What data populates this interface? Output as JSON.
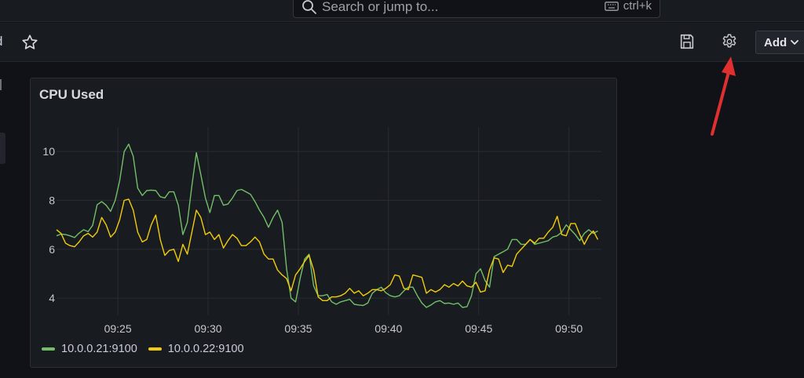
{
  "topbar": {
    "search_placeholder": "Search or jump to...",
    "search_shortcut": "ctrl+k"
  },
  "toolbar": {
    "crumb_tail": "d",
    "add_label": "Add"
  },
  "colors": {
    "series1": "#73bf69",
    "series2": "#f2cc0c",
    "annotation_arrow": "#e02f2f"
  },
  "panel": {
    "title": "CPU Used"
  },
  "chart_data": {
    "type": "line",
    "title": "CPU Used",
    "xlabel": "",
    "ylabel": "",
    "x_ticks": [
      "09:25",
      "09:30",
      "09:35",
      "09:40",
      "09:45",
      "09:50"
    ],
    "y_ticks": [
      4,
      6,
      8,
      10
    ],
    "x_range_minutes": [
      "09:21.6",
      "09:51.8"
    ],
    "ylim": [
      3.3,
      11.0
    ],
    "grid": true,
    "legend_position": "bottom-left",
    "x_start": "09:21.6",
    "x_step_minutes": 0.25,
    "series": [
      {
        "name": "10.0.0.21:9100",
        "color": "#73bf69",
        "values": [
          6.55,
          6.62,
          6.6,
          6.55,
          6.48,
          6.66,
          6.8,
          6.72,
          6.98,
          7.82,
          7.95,
          7.8,
          7.55,
          8.0,
          8.8,
          10.0,
          10.3,
          9.8,
          8.5,
          8.2,
          8.4,
          8.42,
          8.4,
          8.15,
          8.1,
          8.35,
          8.35,
          7.8,
          6.6,
          7.1,
          8.6,
          9.95,
          9.05,
          8.1,
          7.5,
          8.2,
          8.2,
          7.8,
          7.85,
          8.1,
          8.4,
          8.45,
          8.35,
          8.25,
          7.95,
          7.6,
          7.3,
          6.9,
          7.3,
          7.6,
          7.1,
          5.2,
          4.0,
          3.85,
          4.8,
          5.6,
          5.8,
          4.5,
          4.1,
          4.1,
          4.15,
          3.85,
          3.75,
          3.85,
          3.9,
          3.95,
          3.75,
          3.72,
          3.7,
          3.8,
          4.2,
          4.35,
          4.45,
          4.22,
          4.1,
          4.05,
          4.1,
          4.3,
          4.45,
          4.45,
          4.1,
          3.8,
          3.62,
          3.72,
          3.85,
          3.9,
          3.78,
          3.8,
          3.75,
          3.8,
          3.62,
          3.65,
          4.1,
          5.0,
          5.2,
          4.72,
          4.45,
          5.7,
          5.8,
          5.9,
          6.0,
          6.4,
          6.4,
          6.2,
          6.2,
          6.4,
          6.2,
          6.25,
          6.3,
          6.35,
          6.5,
          6.55,
          6.7,
          7.0,
          6.8,
          6.6,
          6.35,
          6.65,
          6.8,
          6.65,
          6.75
        ]
      },
      {
        "name": "10.0.0.22:9100",
        "color": "#f2cc0c",
        "values": [
          6.8,
          6.65,
          6.25,
          6.15,
          6.1,
          6.3,
          6.55,
          6.65,
          6.5,
          6.7,
          7.3,
          7.0,
          6.5,
          6.7,
          7.2,
          8.0,
          8.05,
          7.6,
          6.7,
          6.3,
          6.4,
          7.0,
          7.4,
          6.4,
          5.75,
          5.95,
          6.0,
          5.5,
          6.2,
          5.8,
          6.7,
          7.6,
          7.3,
          6.6,
          6.7,
          6.4,
          6.6,
          6.05,
          6.35,
          6.6,
          6.45,
          6.15,
          6.15,
          6.3,
          6.5,
          6.3,
          5.8,
          5.6,
          5.6,
          5.15,
          4.95,
          4.8,
          4.3,
          4.95,
          5.2,
          5.5,
          5.75,
          5.15,
          4.05,
          3.9,
          3.9,
          4.05,
          4.05,
          4.1,
          4.2,
          4.4,
          4.2,
          4.3,
          4.1,
          4.2,
          4.35,
          4.35,
          4.3,
          4.4,
          4.55,
          4.95,
          4.9,
          4.4,
          4.35,
          4.95,
          4.9,
          4.85,
          4.2,
          4.35,
          4.25,
          4.35,
          4.55,
          4.45,
          4.6,
          4.5,
          4.7,
          4.5,
          4.45,
          4.65,
          4.25,
          4.3,
          5.15,
          5.65,
          5.6,
          5.05,
          5.35,
          5.3,
          5.8,
          6.0,
          6.2,
          6.4,
          6.25,
          6.45,
          6.45,
          6.7,
          6.9,
          7.35,
          6.6,
          6.55,
          7.05,
          7.05,
          6.6,
          6.2,
          6.55,
          6.75,
          6.4
        ]
      }
    ]
  }
}
